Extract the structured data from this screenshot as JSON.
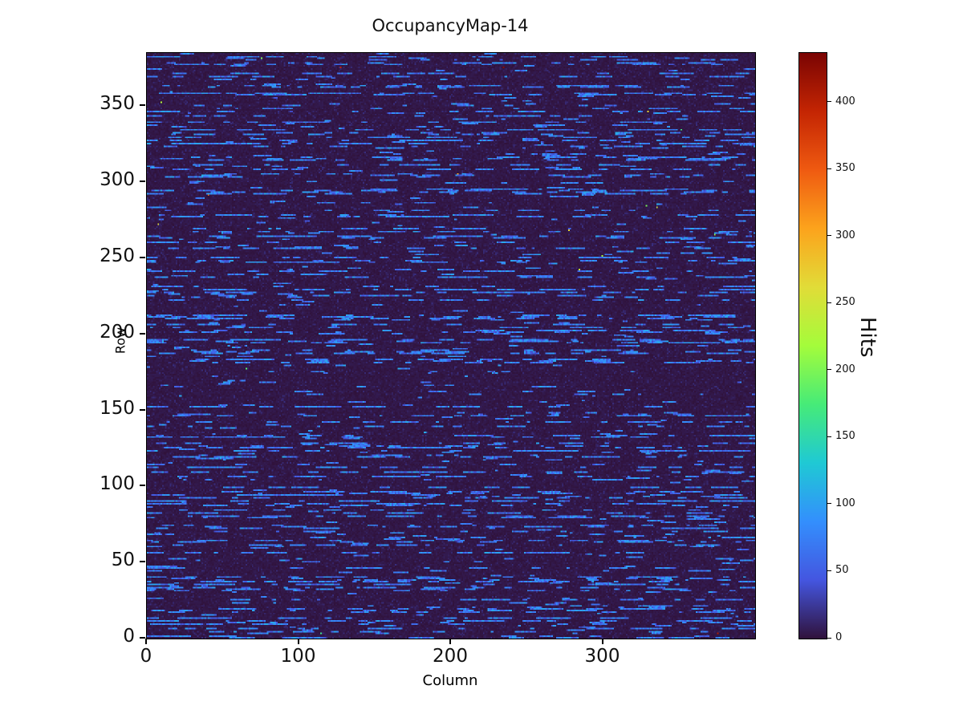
{
  "chart_data": {
    "type": "heatmap",
    "title": "OccupancyMap-14",
    "xlabel": "Column",
    "ylabel": "Row",
    "colorbar_label": "Hits",
    "x_range": [
      0,
      400
    ],
    "y_range": [
      0,
      385
    ],
    "value_range": [
      0,
      437
    ],
    "x_ticks": [
      0,
      100,
      200,
      300
    ],
    "y_ticks": [
      0,
      50,
      100,
      150,
      200,
      250,
      300,
      350
    ],
    "colorbar_ticks": [
      0,
      50,
      100,
      150,
      200,
      250,
      300,
      350,
      400
    ],
    "grid": false,
    "legend": "none",
    "colormap": "turbo",
    "colormap_stops": [
      {
        "t": 0.0,
        "color": "#30123b"
      },
      {
        "t": 0.1,
        "color": "#4456e0"
      },
      {
        "t": 0.2,
        "color": "#338ffd"
      },
      {
        "t": 0.3,
        "color": "#1fc9d4"
      },
      {
        "t": 0.4,
        "color": "#46eb78"
      },
      {
        "t": 0.5,
        "color": "#a4fc3b"
      },
      {
        "t": 0.6,
        "color": "#e1dc38"
      },
      {
        "t": 0.7,
        "color": "#fca31c"
      },
      {
        "t": 0.8,
        "color": "#ef5a11"
      },
      {
        "t": 0.9,
        "color": "#c42503"
      },
      {
        "t": 1.0,
        "color": "#7a0403"
      }
    ],
    "pattern": {
      "description": "Mostly near-zero (dark purple) background of 400x385 cells; many rows carry horizontal dashed streaks of moderate occupancy (~35-110 hits, rendered blue); sparse isolated hot pixels up to ~437 hits (yellow/orange/red specks).",
      "seed": 14,
      "dense_row_fraction": 0.3,
      "sparse_row_fraction": 0.3,
      "streak_value_range": [
        35,
        110
      ],
      "background_value_range": [
        0,
        18
      ],
      "hot_pixel_count": 18,
      "hot_pixel_value_range": [
        150,
        437
      ]
    }
  }
}
